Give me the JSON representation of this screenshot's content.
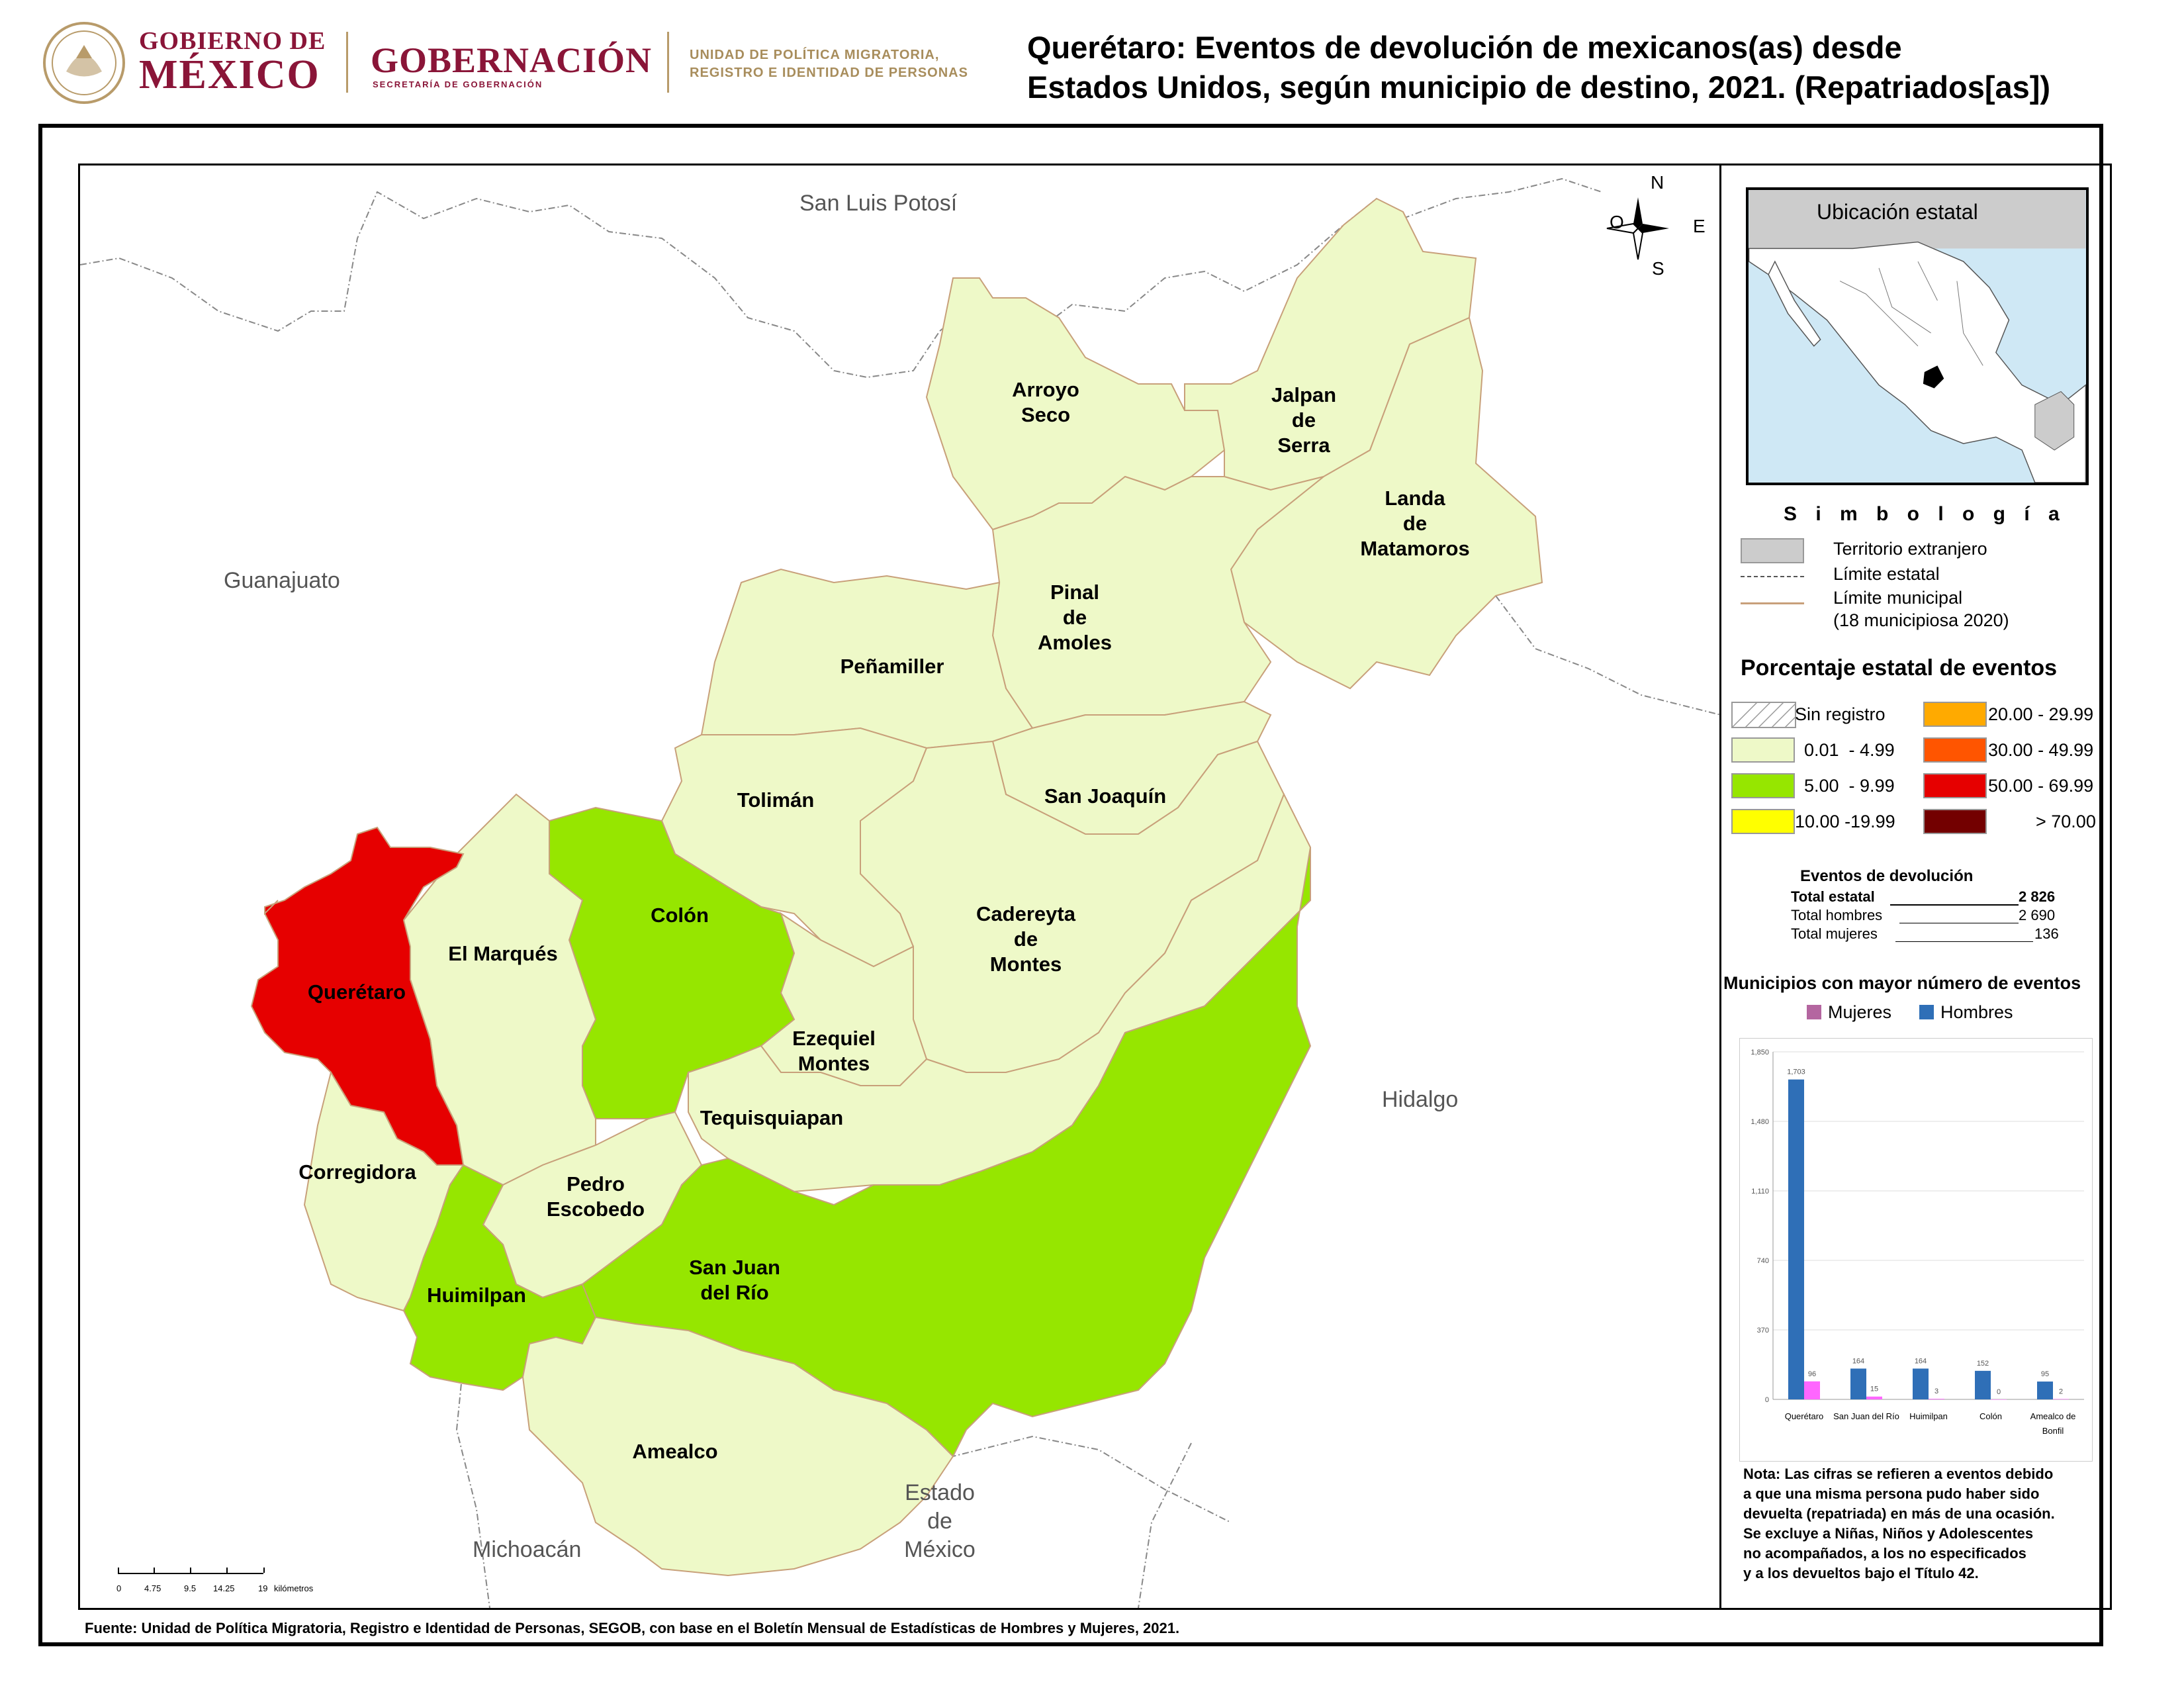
{
  "header": {
    "gob_line1": "GOBIERNO DE",
    "gob_line2": "MÉXICO",
    "gobernacion": "GOBERNACIÓN",
    "gobernacion_sub": "SECRETARÍA DE GOBERNACIÓN",
    "upm_line1": "UNIDAD DE POLÍTICA MIGRATORIA,",
    "upm_line2": "REGISTRO E IDENTIDAD DE PERSONAS",
    "title_line1": "Querétaro: Eventos de devolución de mexicanos(as) desde",
    "title_line2": "Estados Unidos, según municipio de destino, 2021. (Repatriados[as])"
  },
  "colors": {
    "brand": "#8a1538",
    "range_low": "#eef9c8",
    "range_mid": "#96e600",
    "range_high": "#e60000",
    "foreign": "#cccccc"
  },
  "map": {
    "neighbors": {
      "slp": "San Luis Potosí",
      "gto": "Guanajuato",
      "hgo": "Hidalgo",
      "mich": "Michoacán",
      "edomex_1": "Estado",
      "edomex_2": "de",
      "edomex_3": "México"
    },
    "compass": {
      "n": "N",
      "s": "S",
      "e": "E",
      "o": "O"
    },
    "municipalities": [
      {
        "id": "arroyo",
        "lines": [
          "Arroyo",
          "Seco"
        ],
        "range": "0.01 - 4.99"
      },
      {
        "id": "jalpan",
        "lines": [
          "Jalpan",
          "de",
          "Serra"
        ],
        "range": "0.01 - 4.99"
      },
      {
        "id": "landa",
        "lines": [
          "Landa",
          "de",
          "Matamoros"
        ],
        "range": "0.01 - 4.99"
      },
      {
        "id": "pinal",
        "lines": [
          "Pinal",
          "de",
          "Amoles"
        ],
        "range": "0.01 - 4.99"
      },
      {
        "id": "penamiller",
        "lines": [
          "Peñamiller"
        ],
        "range": "0.01 - 4.99"
      },
      {
        "id": "toliman",
        "lines": [
          "Tolimán"
        ],
        "range": "0.01 - 4.99"
      },
      {
        "id": "sanjoaquin",
        "lines": [
          "San Joaquín"
        ],
        "range": "0.01 - 4.99"
      },
      {
        "id": "cadereyta",
        "lines": [
          "Cadereyta",
          "de",
          "Montes"
        ],
        "range": "0.01 - 4.99"
      },
      {
        "id": "colon",
        "lines": [
          "Colón"
        ],
        "range": "5.00 - 9.99"
      },
      {
        "id": "marques",
        "lines": [
          "El Marqués"
        ],
        "range": "0.01 - 4.99"
      },
      {
        "id": "queretaro",
        "lines": [
          "Querétaro"
        ],
        "range": "50.00 - 69.99"
      },
      {
        "id": "ezequiel",
        "lines": [
          "Ezequiel",
          "Montes"
        ],
        "range": "0.01 - 4.99"
      },
      {
        "id": "tequis",
        "lines": [
          "Tequisquiapan"
        ],
        "range": "0.01 - 4.99"
      },
      {
        "id": "corregidora",
        "lines": [
          "Corregidora"
        ],
        "range": "0.01 - 4.99"
      },
      {
        "id": "pedro",
        "lines": [
          "Pedro",
          "Escobedo"
        ],
        "range": "0.01 - 4.99"
      },
      {
        "id": "huimilpan",
        "lines": [
          "Huimilpan"
        ],
        "range": "5.00 - 9.99"
      },
      {
        "id": "sanjuan",
        "lines": [
          "San Juan",
          "del Río"
        ],
        "range": "5.00 - 9.99"
      },
      {
        "id": "amealco",
        "lines": [
          "Amealco"
        ],
        "range": "0.01 - 4.99"
      }
    ],
    "scale": {
      "ticks": [
        "0",
        "4.75",
        "9.5",
        "14.25",
        "19"
      ],
      "unit": "kilómetros"
    }
  },
  "legend": {
    "inset_title": "Ubicación estatal",
    "simbologia": "S i m b o l o g í a",
    "foreign": "Territorio extranjero",
    "state_limit": "Límite estatal",
    "muni_limit": "Límite municipal",
    "muni_limit_sub": "(18 municipiosa 2020)",
    "pct_title": "Porcentaje estatal de eventos",
    "ranges": [
      {
        "label": "Sin registro",
        "color": "#ffffff"
      },
      {
        "label": "0.01  - 4.99",
        "color": "#eef9c8"
      },
      {
        "label": "5.00  - 9.99",
        "color": "#96e600"
      },
      {
        "label": "10.00 -19.99",
        "color": "#ffff00"
      },
      {
        "label": "20.00 - 29.99",
        "color": "#ffaa00"
      },
      {
        "label": "30.00 - 49.99",
        "color": "#ff5500"
      },
      {
        "label": "50.00 - 69.99",
        "color": "#e60000"
      },
      {
        "label": "> 70.00",
        "color": "#730000"
      }
    ],
    "events": {
      "title": "Eventos de devolución",
      "total_label": "Total estatal",
      "total_value": "2 826",
      "men_label": "Total hombres",
      "men_value": "2 690",
      "women_label": "Total mujeres",
      "women_value": "136"
    },
    "top_title": "Municipios con mayor número de eventos",
    "series_women": "Mujeres",
    "series_men": "Hombres",
    "nota": [
      "Nota: Las cifras se refieren a eventos debido",
      "a que una misma persona pudo haber sido",
      "devuelta (repatriada) en más de una ocasión.",
      "Se excluye a Niñas, Niños y Adolescentes",
      "no acompañados, a los no especificados",
      "y a los devueltos bajo el Título 42."
    ]
  },
  "chart_data": {
    "type": "bar",
    "categories": [
      "Querétaro",
      "San Juan del Río",
      "Huimilpan",
      "Colón",
      "Amealco de Bonfil"
    ],
    "category_lines": [
      [
        "Querétaro"
      ],
      [
        "San Juan del Río"
      ],
      [
        "Huimilpan"
      ],
      [
        "Colón"
      ],
      [
        "Amealco de",
        "Bonfil"
      ]
    ],
    "series": [
      {
        "name": "Hombres",
        "values": [
          1703,
          164,
          164,
          152,
          95
        ],
        "color": "#2f6fb7"
      },
      {
        "name": "Mujeres",
        "values": [
          96,
          15,
          3,
          0,
          2
        ],
        "color": "#ff66ff"
      }
    ],
    "yticks": [
      0,
      370,
      740,
      1110,
      1480,
      1850
    ],
    "ytick_labels": [
      "0",
      "370",
      "740",
      "1,110",
      "1,480",
      "1,850"
    ],
    "value_labels_men": [
      "1,703",
      "164",
      "164",
      "152",
      "95"
    ],
    "value_labels_women": [
      "96",
      "15",
      "3",
      "0",
      "2"
    ],
    "ylim": [
      0,
      1850
    ],
    "grid": true,
    "legend": "top"
  },
  "footer": {
    "fuente": "Fuente: Unidad de Política Migratoria, Registro e Identidad de Personas, SEGOB, con base en el Boletín Mensual de Estadísticas de Hombres y Mujeres, 2021."
  }
}
